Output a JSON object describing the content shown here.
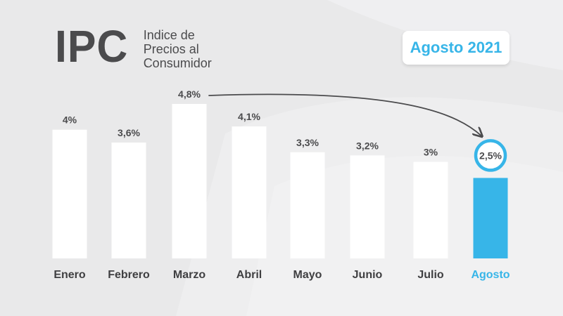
{
  "header": {
    "logo": "IPC",
    "subtitle": "Indice de\nPrecios al\nConsumidor",
    "badge": "Agosto 2021"
  },
  "colors": {
    "background": "#e9e9ea",
    "bar": "#ffffff",
    "highlight": "#37b5e8",
    "text": "#4b4b4d",
    "arrow": "#4b4b4d"
  },
  "chart_data": {
    "type": "bar",
    "categories": [
      "Enero",
      "Febrero",
      "Marzo",
      "Abril",
      "Mayo",
      "Junio",
      "Julio",
      "Agosto"
    ],
    "values": [
      4,
      3.6,
      4.8,
      4.1,
      3.3,
      3.2,
      3,
      2.5
    ],
    "value_labels": [
      "4%",
      "3,6%",
      "4,8%",
      "4,1%",
      "3,3%",
      "3,2%",
      "3%",
      "2,5%"
    ],
    "highlight_category": "Agosto",
    "annotation": {
      "type": "arrow",
      "from": "Marzo",
      "to": "Agosto"
    },
    "title": "",
    "xlabel": "",
    "ylabel": ""
  }
}
